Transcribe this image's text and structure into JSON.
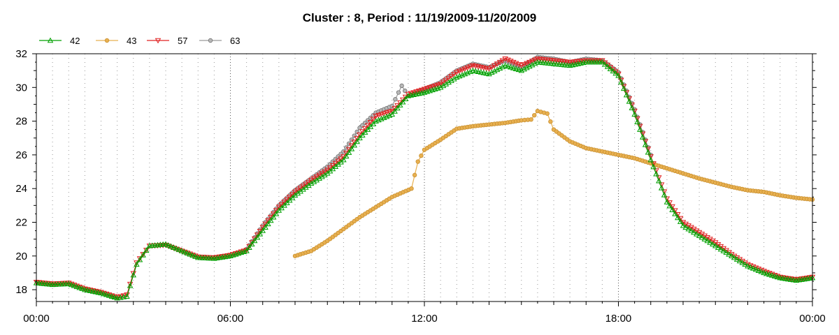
{
  "chart_data": {
    "type": "line",
    "title": "Cluster : 8, Period : 11/19/2009-11/20/2009",
    "xlabel": "",
    "ylabel": "",
    "x_unit": "hour",
    "xlim": [
      0,
      24
    ],
    "ylim": [
      17.3,
      32
    ],
    "x_ticks": [
      0,
      6,
      12,
      18,
      24
    ],
    "x_tick_labels": [
      "00:00",
      "06:00",
      "12:00",
      "18:00",
      "00:00"
    ],
    "y_ticks": [
      18,
      20,
      22,
      24,
      26,
      28,
      30,
      32
    ],
    "y_tick_labels": [
      "18",
      "20",
      "22",
      "24",
      "26",
      "28",
      "30",
      "32"
    ],
    "grid": "vertical dotted",
    "legend_position": "top-left",
    "series": [
      {
        "name": "42",
        "color": "#00a000",
        "marker": "triangle-up",
        "x": [
          0,
          0.5,
          1,
          1.5,
          2,
          2.5,
          2.8,
          3.1,
          3.5,
          4,
          4.5,
          5,
          5.5,
          6,
          6.5,
          7,
          7.5,
          8,
          8.5,
          9,
          9.5,
          10,
          10.5,
          11,
          11.5,
          12,
          12.5,
          13,
          13.5,
          14,
          14.5,
          15,
          15.5,
          16,
          16.5,
          17,
          17.5,
          18,
          18.5,
          19,
          19.5,
          20,
          20.5,
          21,
          21.5,
          22,
          22.5,
          23,
          23.5,
          24
        ],
        "values": [
          18.4,
          18.3,
          18.35,
          18.0,
          17.8,
          17.5,
          17.6,
          19.5,
          20.6,
          20.7,
          20.3,
          19.9,
          19.85,
          20.0,
          20.3,
          21.5,
          22.7,
          23.6,
          24.3,
          24.9,
          25.7,
          27.0,
          28.0,
          28.4,
          29.5,
          29.7,
          30.0,
          30.6,
          31.0,
          30.8,
          31.3,
          31.0,
          31.5,
          31.4,
          31.3,
          31.5,
          31.5,
          30.7,
          28.4,
          25.7,
          23.2,
          21.8,
          21.2,
          20.6,
          20.0,
          19.4,
          19.0,
          18.7,
          18.55,
          18.7
        ]
      },
      {
        "name": "43",
        "color": "#e8b050",
        "marker": "circle",
        "x": [
          8,
          8.5,
          9,
          9.5,
          10,
          10.5,
          11,
          11.6,
          11.8,
          12,
          12.5,
          13,
          13.5,
          14,
          14.5,
          15,
          15.3,
          15.5,
          15.8,
          16,
          16.5,
          17,
          17.5,
          18,
          18.5,
          19,
          19.5,
          20,
          20.5,
          21,
          21.5,
          22,
          22.5,
          23,
          23.5,
          24
        ],
        "values": [
          20.0,
          20.3,
          20.9,
          21.6,
          22.3,
          22.9,
          23.5,
          24.0,
          25.6,
          26.3,
          26.9,
          27.55,
          27.7,
          27.8,
          27.9,
          28.05,
          28.1,
          28.6,
          28.45,
          27.5,
          26.8,
          26.4,
          26.2,
          26.0,
          25.8,
          25.5,
          25.2,
          24.9,
          24.6,
          24.35,
          24.1,
          23.9,
          23.8,
          23.6,
          23.45,
          23.35
        ]
      },
      {
        "name": "57",
        "color": "#e02020",
        "marker": "triangle-down",
        "x": [
          0,
          0.5,
          1,
          1.5,
          2,
          2.5,
          2.8,
          3.1,
          3.5,
          4,
          4.5,
          5,
          5.5,
          6,
          6.5,
          7,
          7.5,
          8,
          8.5,
          9,
          9.5,
          10,
          10.5,
          11,
          11.5,
          12,
          12.5,
          13,
          13.5,
          14,
          14.5,
          15,
          15.5,
          16,
          16.5,
          17,
          17.5,
          18,
          18.5,
          19,
          19.5,
          20,
          20.5,
          21,
          21.5,
          22,
          22.5,
          23,
          23.5,
          24
        ],
        "values": [
          18.45,
          18.35,
          18.4,
          18.05,
          17.85,
          17.55,
          17.7,
          19.6,
          20.6,
          20.65,
          20.3,
          19.95,
          19.9,
          20.05,
          20.35,
          21.7,
          22.9,
          23.8,
          24.5,
          25.1,
          25.9,
          27.2,
          28.3,
          28.6,
          29.6,
          29.9,
          30.2,
          30.9,
          31.3,
          31.1,
          31.7,
          31.3,
          31.7,
          31.6,
          31.5,
          31.6,
          31.6,
          30.8,
          28.6,
          25.9,
          23.4,
          22.0,
          21.4,
          20.8,
          20.1,
          19.5,
          19.1,
          18.75,
          18.6,
          18.75
        ]
      },
      {
        "name": "63",
        "color": "#9a9a9a",
        "marker": "circle",
        "x": [
          6.5,
          7,
          7.5,
          8,
          8.5,
          9,
          9.5,
          10,
          10.5,
          11,
          11.3,
          11.5,
          12,
          12.5,
          13,
          13.5,
          14,
          14.5,
          15,
          15.5,
          16,
          16.5,
          17,
          17.5,
          18,
          18.5,
          19
        ],
        "values": [
          20.4,
          21.8,
          23.0,
          23.9,
          24.6,
          25.3,
          26.2,
          27.6,
          28.5,
          28.9,
          30.1,
          29.5,
          29.9,
          30.3,
          31.0,
          31.4,
          31.2,
          31.6,
          31.2,
          31.8,
          31.7,
          31.5,
          31.7,
          31.6,
          30.9,
          28.7,
          26.0
        ]
      }
    ]
  }
}
